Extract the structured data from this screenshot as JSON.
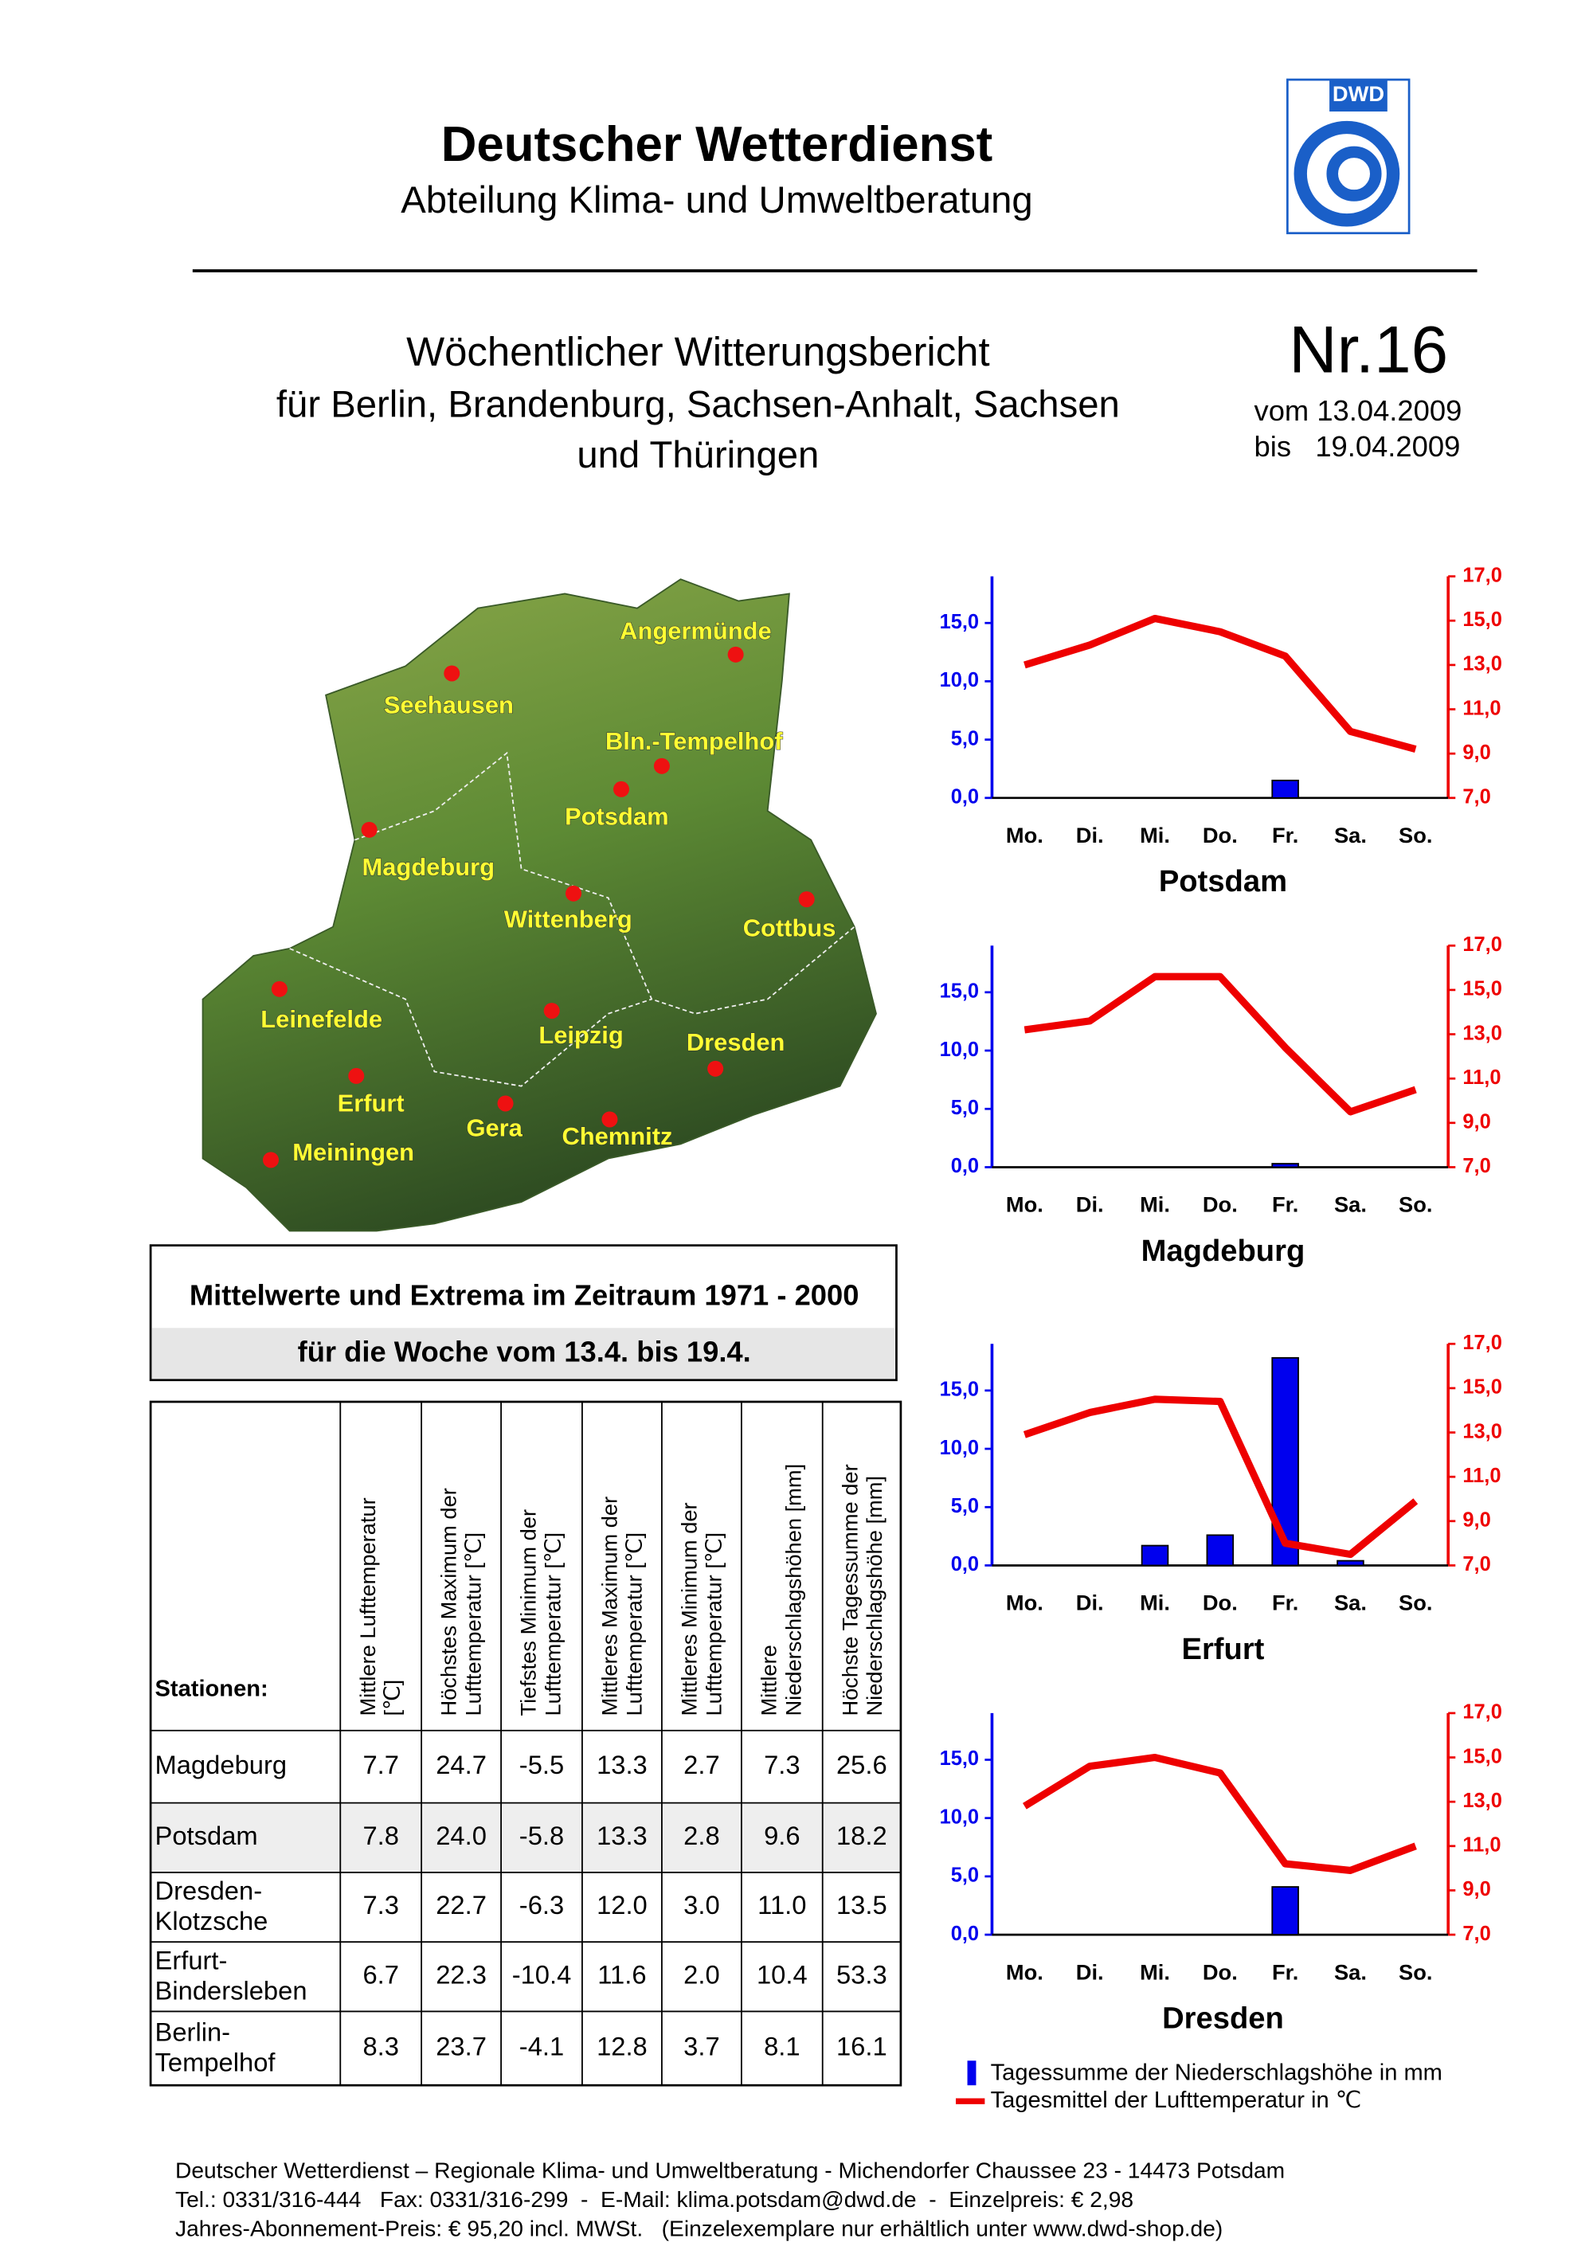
{
  "header": {
    "title": "Deutscher Wetterdienst",
    "subtitle": "Abteilung Klima- und Umweltberatung",
    "logo": "DWD"
  },
  "report": {
    "title": "Wöchentlicher Witterungsbericht",
    "lines": [
      "für Berlin, Brandenburg, Sachsen-Anhalt, Sachsen",
      "und Thüringen"
    ],
    "number": "Nr.16",
    "from": "vom 13.04.2009",
    "to": "bis   19.04.2009"
  },
  "map": {
    "cities": [
      "Angermünde",
      "Seehausen",
      "Bln.-Tempelhof",
      "Potsdam",
      "Magdeburg",
      "Wittenberg",
      "Cottbus",
      "Leinefelde",
      "Leipzig",
      "Dresden",
      "Erfurt",
      "Gera",
      "Chemnitz",
      "Meiningen"
    ]
  },
  "box": {
    "title": "Mittelwerte und Extrema im Zeitraum 1971 - 2000",
    "subtitle": "für die Woche vom 13.4. bis 19.4."
  },
  "table": {
    "stub": "Stationen:",
    "columns": [
      [
        "Mittlere Lufttemperatur",
        "[℃]"
      ],
      [
        "Höchstes Maximum der",
        "Lufttemperatur [℃]"
      ],
      [
        "Tiefstes Minimum der",
        "Lufttemperatur [℃]"
      ],
      [
        "Mittleres Maximum der",
        "Lufttemperatur [℃]"
      ],
      [
        "Mittleres Minimum der",
        "Lufttemperatur [℃]"
      ],
      [
        "Mittlere",
        "Niederschlagshöhen [mm]"
      ],
      [
        "Höchste Tagessumme der",
        "Niederschlagshöhe [mm]"
      ]
    ],
    "rows": [
      {
        "name": [
          "Magdeburg"
        ],
        "cells": [
          "7.7",
          "24.7",
          "-5.5",
          "13.3",
          "2.7",
          "7.3",
          "25.6"
        ]
      },
      {
        "name": [
          "Potsdam"
        ],
        "cells": [
          "7.8",
          "24.0",
          "-5.8",
          "13.3",
          "2.8",
          "9.6",
          "18.2"
        ]
      },
      {
        "name": [
          "Dresden-",
          "Klotzsche"
        ],
        "cells": [
          "7.3",
          "22.7",
          "-6.3",
          "12.0",
          "3.0",
          "11.0",
          "13.5"
        ]
      },
      {
        "name": [
          "Erfurt-",
          "Bindersleben"
        ],
        "cells": [
          "6.7",
          "22.3",
          "-10.4",
          "11.6",
          "2.0",
          "10.4",
          "53.3"
        ]
      },
      {
        "name": [
          "Berlin-",
          "Tempelhof"
        ],
        "cells": [
          "8.3",
          "23.7",
          "-4.1",
          "12.8",
          "3.7",
          "8.1",
          "16.1"
        ]
      }
    ]
  },
  "chart_data": [
    {
      "type": "combo",
      "title": "Potsdam",
      "categories": [
        "Mo.",
        "Di.",
        "Mi.",
        "Do.",
        "Fr.",
        "Sa.",
        "So."
      ],
      "ylim": [
        0,
        19
      ],
      "yticks": [
        {
          "value": 0,
          "label": "0,0"
        },
        {
          "value": 5,
          "label": "5,0"
        },
        {
          "value": 10,
          "label": "10,0"
        },
        {
          "value": 15,
          "label": "15,0"
        }
      ],
      "y2lim": [
        7,
        17
      ],
      "y2ticks": [
        {
          "value": 7,
          "label": "7,0"
        },
        {
          "value": 9,
          "label": "9,0"
        },
        {
          "value": 11,
          "label": "11,0"
        },
        {
          "value": 13,
          "label": "13,0"
        },
        {
          "value": 15,
          "label": "15,0"
        },
        {
          "value": 17,
          "label": "17,0"
        }
      ],
      "series": [
        {
          "type": "bar",
          "color": "#0000ee",
          "values": [
            0,
            0,
            0,
            0,
            1.5,
            0,
            0
          ]
        },
        {
          "type": "line",
          "axis": "y2",
          "color": "#ee0000",
          "values": [
            13.0,
            13.9,
            15.1,
            14.5,
            13.4,
            10.0,
            9.2
          ]
        }
      ]
    },
    {
      "type": "combo",
      "title": "Magdeburg",
      "categories": [
        "Mo.",
        "Di.",
        "Mi.",
        "Do.",
        "Fr.",
        "Sa.",
        "So."
      ],
      "ylim": [
        0,
        19
      ],
      "yticks": [
        {
          "value": 0,
          "label": "0,0"
        },
        {
          "value": 5,
          "label": "5,0"
        },
        {
          "value": 10,
          "label": "10,0"
        },
        {
          "value": 15,
          "label": "15,0"
        }
      ],
      "y2lim": [
        7,
        17
      ],
      "y2ticks": [
        {
          "value": 7,
          "label": "7,0"
        },
        {
          "value": 9,
          "label": "9,0"
        },
        {
          "value": 11,
          "label": "11,0"
        },
        {
          "value": 13,
          "label": "13,0"
        },
        {
          "value": 15,
          "label": "15,0"
        },
        {
          "value": 17,
          "label": "17,0"
        }
      ],
      "series": [
        {
          "type": "bar",
          "color": "#0000ee",
          "values": [
            0,
            0,
            0,
            0,
            0.3,
            0,
            0
          ]
        },
        {
          "type": "line",
          "axis": "y2",
          "color": "#ee0000",
          "values": [
            13.2,
            13.6,
            15.6,
            15.6,
            12.4,
            9.5,
            10.5
          ]
        }
      ]
    },
    {
      "type": "combo",
      "title": "Erfurt",
      "categories": [
        "Mo.",
        "Di.",
        "Mi.",
        "Do.",
        "Fr.",
        "Sa.",
        "So."
      ],
      "ylim": [
        0,
        19
      ],
      "yticks": [
        {
          "value": 0,
          "label": "0,0"
        },
        {
          "value": 5,
          "label": "5,0"
        },
        {
          "value": 10,
          "label": "10,0"
        },
        {
          "value": 15,
          "label": "15,0"
        }
      ],
      "y2lim": [
        7,
        17
      ],
      "y2ticks": [
        {
          "value": 7,
          "label": "7,0"
        },
        {
          "value": 9,
          "label": "9,0"
        },
        {
          "value": 11,
          "label": "11,0"
        },
        {
          "value": 13,
          "label": "13,0"
        },
        {
          "value": 15,
          "label": "15,0"
        },
        {
          "value": 17,
          "label": "17,0"
        }
      ],
      "series": [
        {
          "type": "bar",
          "color": "#0000ee",
          "values": [
            0,
            0,
            1.7,
            2.6,
            17.8,
            0.4,
            0
          ]
        },
        {
          "type": "line",
          "axis": "y2",
          "color": "#ee0000",
          "values": [
            12.9,
            13.9,
            14.5,
            14.4,
            8.0,
            7.5,
            9.9
          ]
        }
      ]
    },
    {
      "type": "combo",
      "title": "Dresden",
      "categories": [
        "Mo.",
        "Di.",
        "Mi.",
        "Do.",
        "Fr.",
        "Sa.",
        "So."
      ],
      "ylim": [
        0,
        19
      ],
      "yticks": [
        {
          "value": 0,
          "label": "0,0"
        },
        {
          "value": 5,
          "label": "5,0"
        },
        {
          "value": 10,
          "label": "10,0"
        },
        {
          "value": 15,
          "label": "15,0"
        }
      ],
      "y2lim": [
        7,
        17
      ],
      "y2ticks": [
        {
          "value": 7,
          "label": "7,0"
        },
        {
          "value": 9,
          "label": "9,0"
        },
        {
          "value": 11,
          "label": "11,0"
        },
        {
          "value": 13,
          "label": "13,0"
        },
        {
          "value": 15,
          "label": "15,0"
        },
        {
          "value": 17,
          "label": "17,0"
        }
      ],
      "series": [
        {
          "type": "bar",
          "color": "#0000ee",
          "values": [
            0,
            0,
            0,
            0,
            4.1,
            0,
            0
          ]
        },
        {
          "type": "line",
          "axis": "y2",
          "color": "#ee0000",
          "values": [
            12.8,
            14.6,
            15.0,
            14.3,
            10.2,
            9.9,
            11.0
          ]
        }
      ]
    }
  ],
  "legend": [
    "Tagessumme der Niederschlagshöhe in mm",
    "Tagesmittel der Lufttemperatur in ℃"
  ],
  "footer": [
    "Deutscher Wetterdienst – Regionale Klima- und Umweltberatung - Michendorfer Chaussee 23 - 14473 Potsdam",
    "Tel.: 0331/316-444   Fax: 0331/316-299  -  E-Mail: klima.potsdam@dwd.de  -  Einzelpreis: € 2,98",
    "Jahres-Abonnement-Preis: € 95,20 incl. MWSt.   (Einzelexemplare nur erhältlich unter www.dwd-shop.de)"
  ]
}
